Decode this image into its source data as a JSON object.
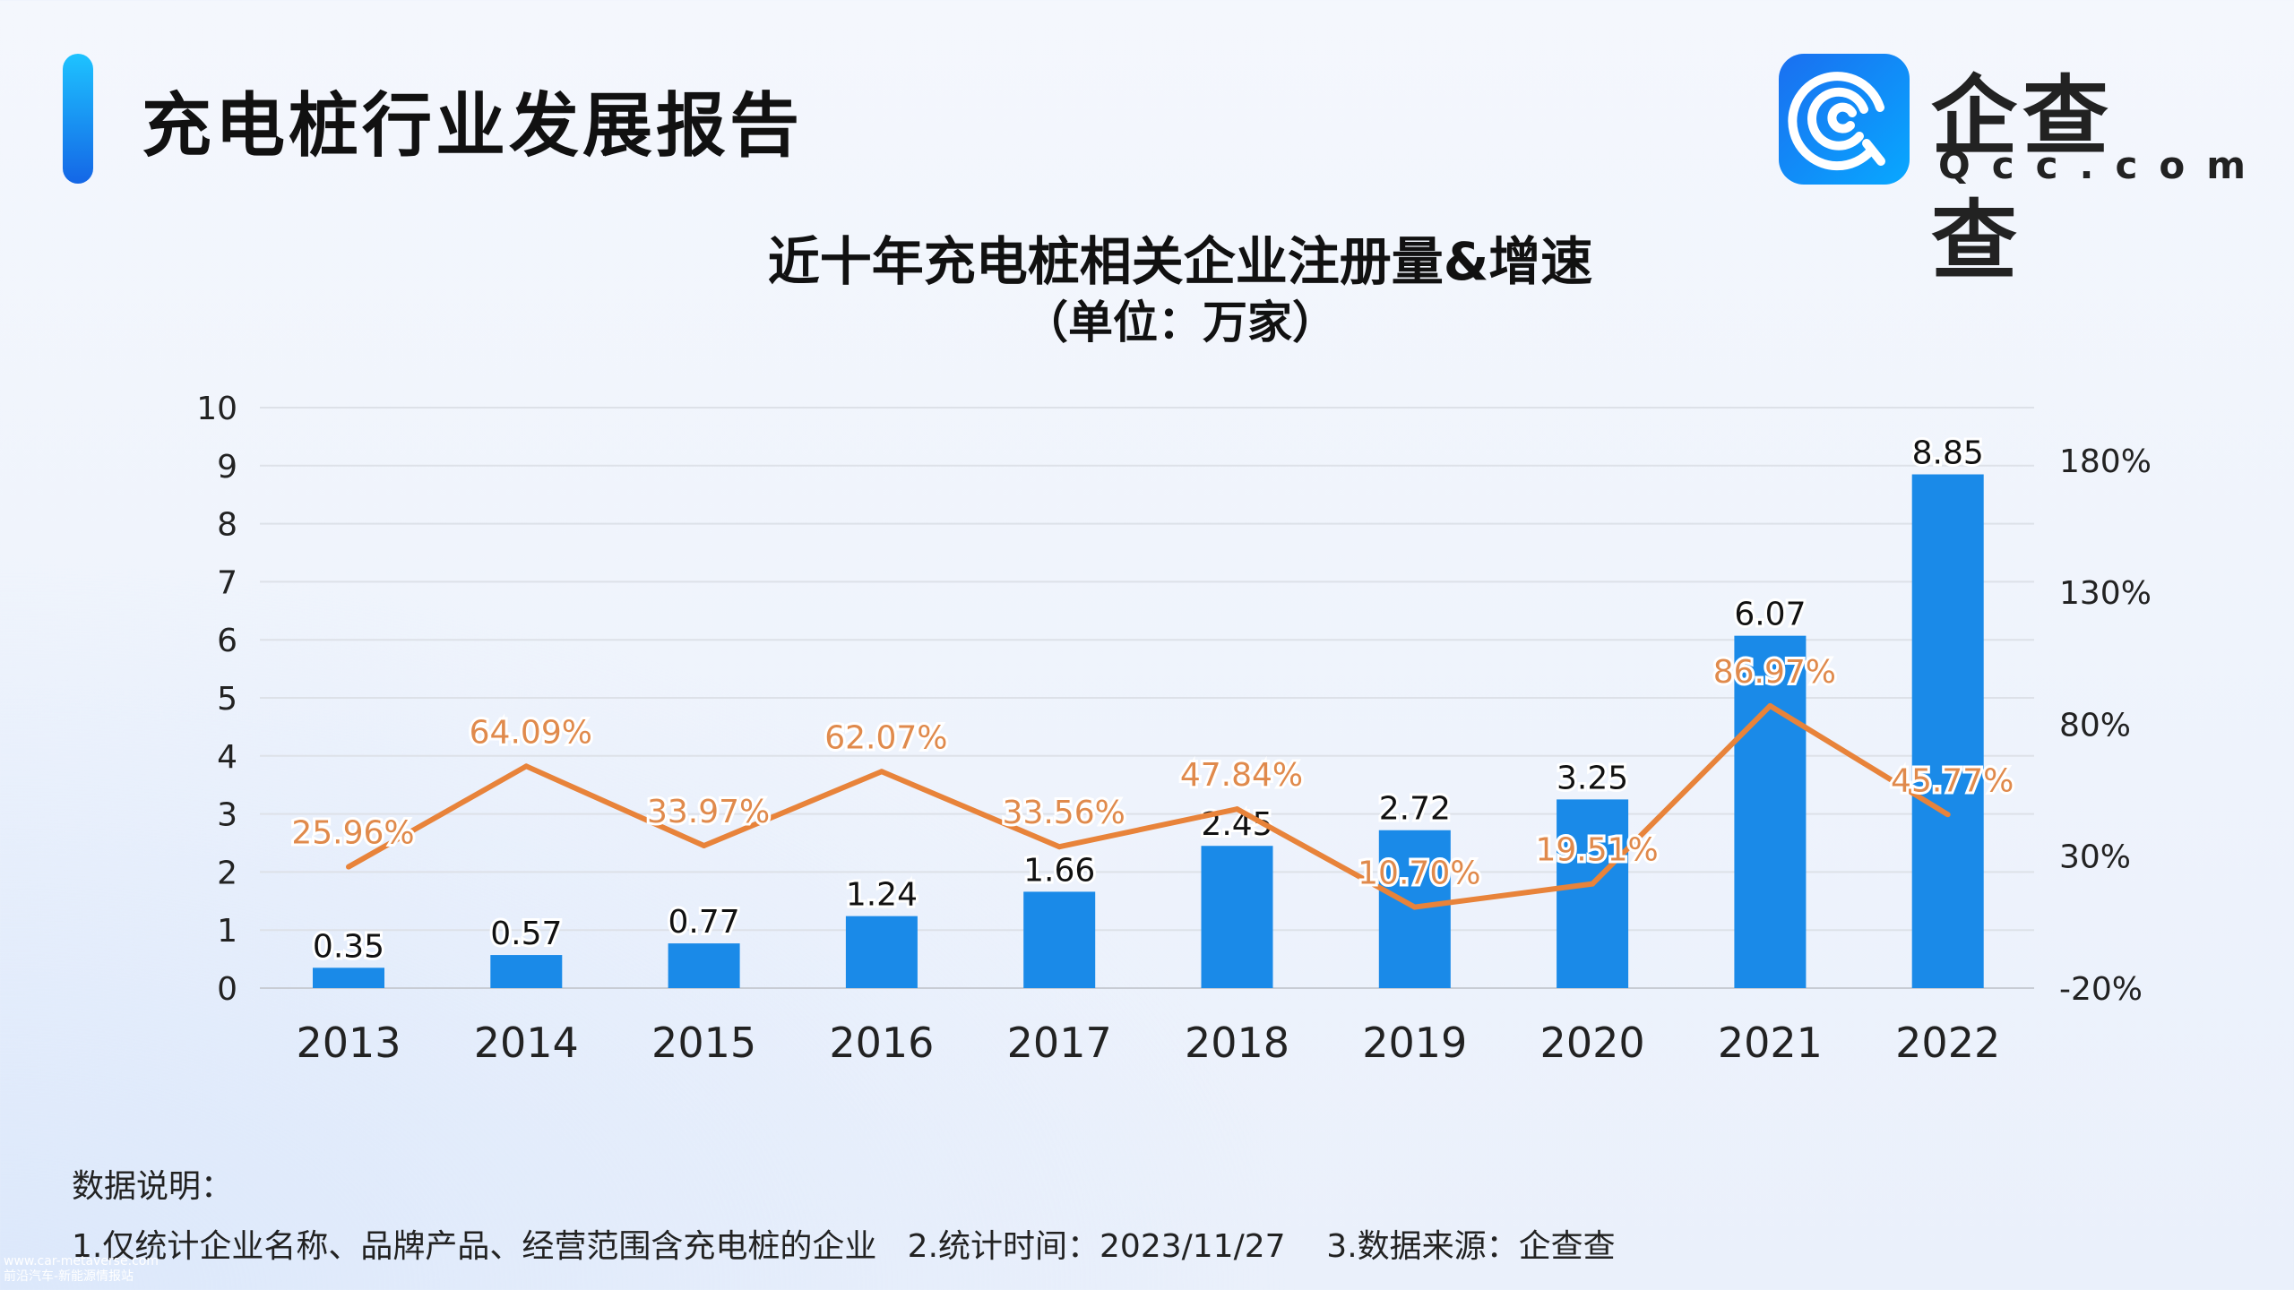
{
  "header": {
    "title": "充电桩行业发展报告",
    "logo_cn": "企查查",
    "logo_en": "Qcc.com"
  },
  "colors": {
    "bar": "#1a8ae8",
    "line": "#e8833a",
    "label": "#e08a4c"
  },
  "chart_data": {
    "type": "bar+line",
    "title": "近十年充电桩相关企业注册量&增速",
    "subtitle": "（单位：万家）",
    "categories": [
      "2013",
      "2014",
      "2015",
      "2016",
      "2017",
      "2018",
      "2019",
      "2020",
      "2021",
      "2022"
    ],
    "series": [
      {
        "type": "bar",
        "axis": "left",
        "values": [
          0.35,
          0.57,
          0.77,
          1.24,
          1.66,
          2.45,
          2.72,
          3.25,
          6.07,
          8.85
        ],
        "labels": [
          "0.35",
          "0.57",
          "0.77",
          "1.24",
          "1.66",
          "2.45",
          "2.72",
          "3.25",
          "6.07",
          "8.85"
        ]
      },
      {
        "type": "line",
        "axis": "right",
        "values": [
          25.96,
          64.09,
          33.97,
          62.07,
          33.56,
          47.84,
          10.7,
          19.51,
          86.97,
          45.77
        ],
        "labels": [
          "25.96%",
          "64.09%",
          "33.97%",
          "62.07%",
          "33.56%",
          "47.84%",
          "10.70%",
          "19.51%",
          "86.97%",
          "45.77%"
        ]
      }
    ],
    "y_left": {
      "min": 0,
      "max": 10,
      "ticks": [
        "0",
        "1",
        "2",
        "3",
        "4",
        "5",
        "6",
        "7",
        "8",
        "9",
        "10"
      ]
    },
    "y_right": {
      "min": -20,
      "max": 200,
      "ticks": [
        "-20%",
        "30%",
        "80%",
        "130%",
        "180%"
      ],
      "tick_values": [
        -20,
        30,
        80,
        130,
        180
      ]
    },
    "grid": true
  },
  "footer": {
    "heading": "数据说明：",
    "text": "1.仅统计企业名称、品牌产品、经营范围含充电桩的企业   2.统计时间：2023/11/27    3.数据来源：企查查"
  },
  "watermark": {
    "line1": "www.car-metaverse.com",
    "line2": "前沿汽车-新能源情报站"
  }
}
